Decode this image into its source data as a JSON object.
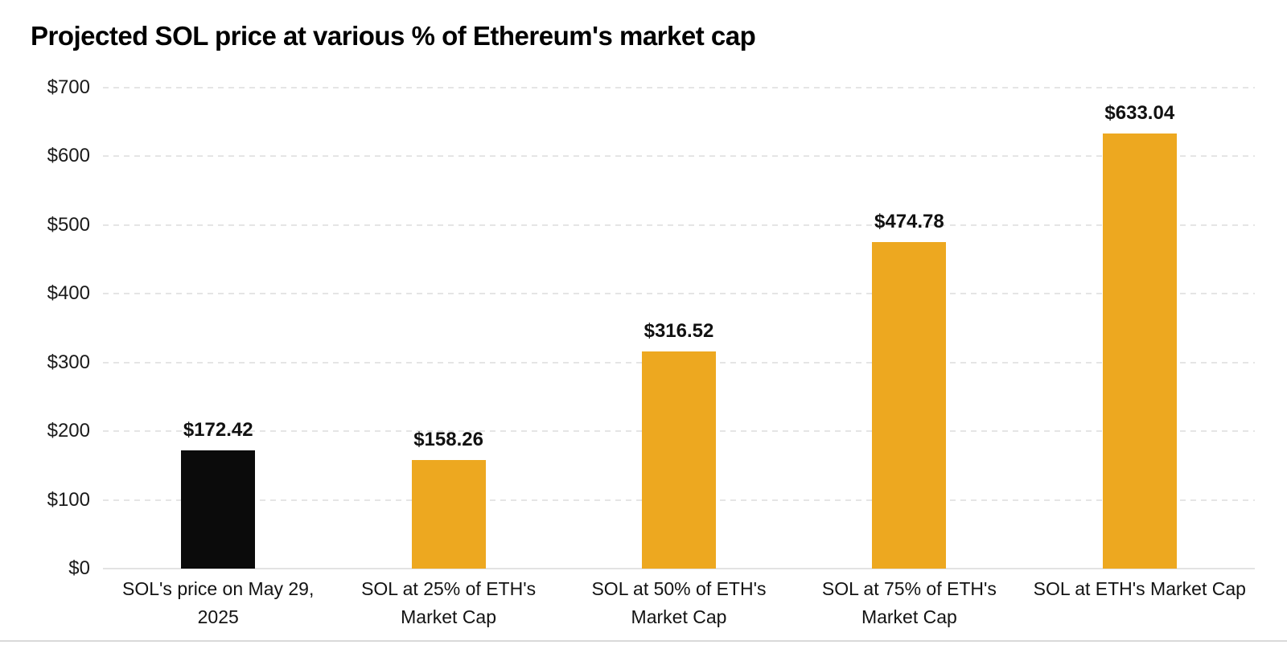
{
  "chart_data": {
    "type": "bar",
    "title": "Projected SOL price at various % of Ethereum's market cap",
    "categories": [
      "SOL's price on May 29,\n2025",
      "SOL at 25% of ETH's\nMarket Cap",
      "SOL at 50% of ETH's\nMarket Cap",
      "SOL at 75% of ETH's\nMarket Cap",
      "SOL at ETH's Market Cap"
    ],
    "values": [
      172.42,
      158.26,
      316.52,
      474.78,
      633.04
    ],
    "value_labels": [
      "$172.42",
      "$158.26",
      "$316.52",
      "$474.78",
      "$633.04"
    ],
    "bar_colors": [
      "#0B0B0B",
      "#EDA820",
      "#EDA820",
      "#EDA820",
      "#EDA820"
    ],
    "xlabel": "",
    "ylabel": "",
    "ylim": [
      0,
      700
    ],
    "ytick_values": [
      700,
      600,
      500,
      400,
      300,
      200,
      100,
      0
    ],
    "ytick_labels": [
      "$700",
      "$600",
      "$500",
      "$400",
      "$300",
      "$200",
      "$100",
      "$0"
    ],
    "grid": "horizontal-dashed",
    "legend": "none"
  },
  "colors": {
    "accent_orange": "#EDA820",
    "highlight_black": "#0B0B0B",
    "gridline": "#E5E5E5",
    "baseline": "#E3E3E3",
    "divider": "#D9D9D9",
    "text": "#111111",
    "background": "#FFFFFF"
  }
}
